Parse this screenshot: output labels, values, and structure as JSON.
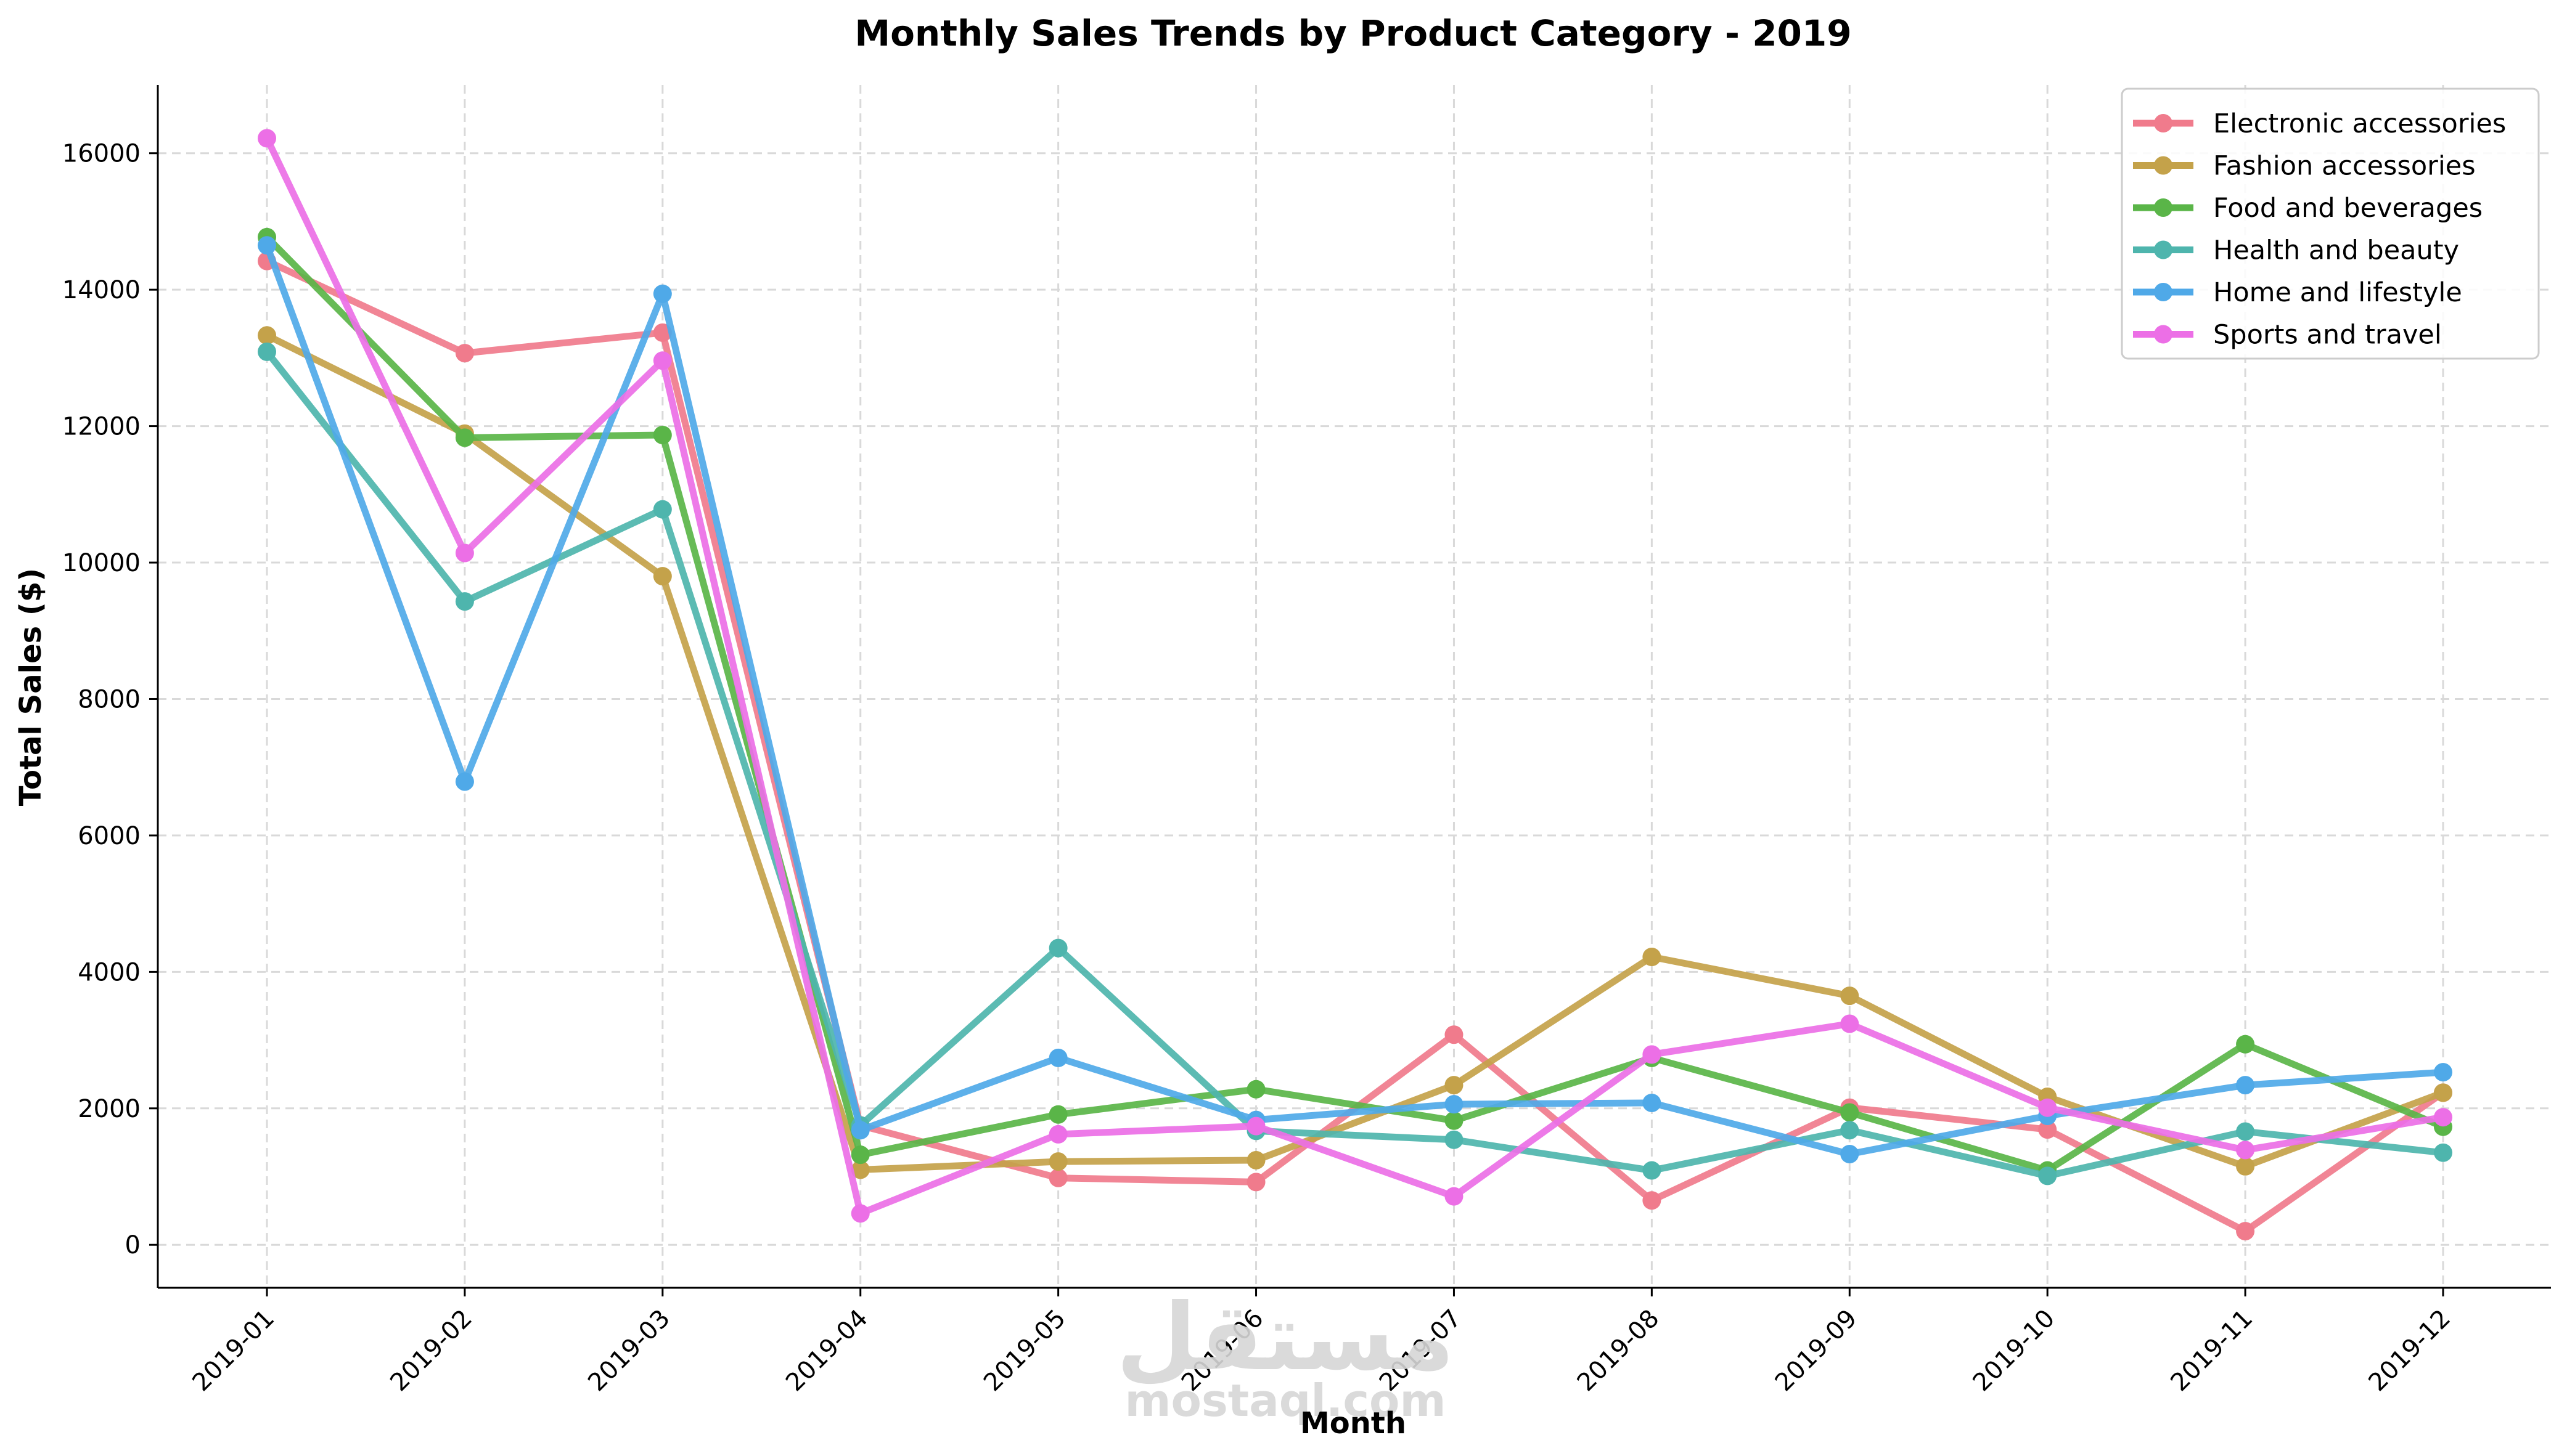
{
  "chart_data": {
    "type": "line",
    "title": "Monthly Sales Trends by Product Category - 2019",
    "xlabel": "Month",
    "ylabel": "Total Sales ($)",
    "categories": [
      "2019-01",
      "2019-02",
      "2019-03",
      "2019-04",
      "2019-05",
      "2019-06",
      "2019-07",
      "2019-08",
      "2019-09",
      "2019-10",
      "2019-11",
      "2019-12"
    ],
    "ylim": [
      -630,
      17000
    ],
    "yticks": [
      0,
      2000,
      4000,
      6000,
      8000,
      10000,
      12000,
      14000,
      16000
    ],
    "grid": true,
    "legend_position": "top-right",
    "series": [
      {
        "name": "Electronic accessories",
        "color": "#f07b8c",
        "values": [
          14420,
          13070,
          13370,
          1750,
          980,
          920,
          3080,
          650,
          2010,
          1690,
          200,
          2230
        ]
      },
      {
        "name": "Fashion accessories",
        "color": "#c4a24a",
        "values": [
          13330,
          11890,
          9800,
          1100,
          1220,
          1240,
          2340,
          4220,
          3650,
          2170,
          1150,
          2230
        ]
      },
      {
        "name": "Food and beverages",
        "color": "#5ab548",
        "values": [
          14770,
          11830,
          11870,
          1320,
          1910,
          2280,
          1820,
          2740,
          1940,
          1090,
          2940,
          1730
        ]
      },
      {
        "name": "Health and beauty",
        "color": "#4eb5ad",
        "values": [
          13090,
          9430,
          10780,
          1750,
          4350,
          1670,
          1540,
          1090,
          1680,
          1010,
          1660,
          1350
        ]
      },
      {
        "name": "Home and lifestyle",
        "color": "#4fa9e8",
        "values": [
          14650,
          6790,
          13940,
          1680,
          2740,
          1830,
          2060,
          2080,
          1330,
          1890,
          2340,
          2530
        ]
      },
      {
        "name": "Sports and travel",
        "color": "#ec6fe6",
        "values": [
          16220,
          10140,
          12960,
          460,
          1620,
          1740,
          710,
          2790,
          3240,
          2010,
          1390,
          1870
        ]
      }
    ]
  },
  "watermark": {
    "arabic": "مستقل",
    "latin": "mostaql.com"
  }
}
